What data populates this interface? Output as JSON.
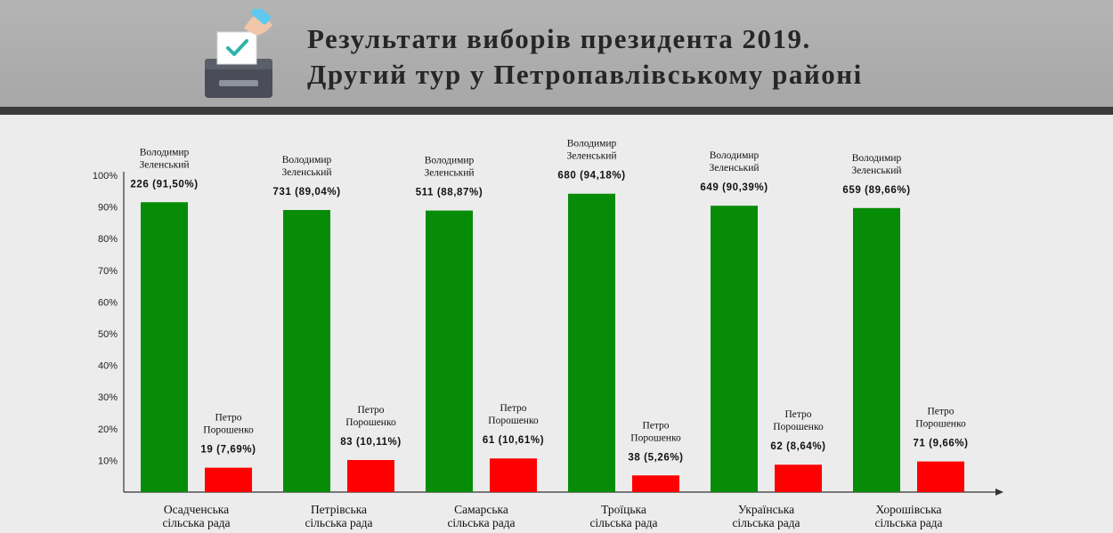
{
  "header": {
    "title_line1": "Результати виборів президента 2019.",
    "title_line2": "Другий тур у Петропавлівському районі",
    "icon": "ballot-box-icon"
  },
  "colors": {
    "zelensky": "#078c07",
    "poroshenko": "#ff0000",
    "header_bg": "#aaaaaa",
    "header_bar": "#3b3b3b",
    "background": "#ececec"
  },
  "chart_data": {
    "type": "bar",
    "title": "Результати виборів президента 2019. Другий тур у Петропавлівському районі",
    "ylim": [
      0,
      100
    ],
    "yticks": [
      10,
      20,
      30,
      40,
      50,
      60,
      70,
      80,
      90,
      100
    ],
    "ytick_labels": [
      "10%",
      "20%",
      "30%",
      "40%",
      "50%",
      "60%",
      "70%",
      "80%",
      "90%",
      "100%"
    ],
    "grid": false,
    "categories": [
      [
        "Осадченська",
        "сільська  рада"
      ],
      [
        "Петрівська",
        "сільська  рада"
      ],
      [
        "Самарська",
        "сільська  рада"
      ],
      [
        "Троїцька",
        "сільська  рада"
      ],
      [
        "Українська",
        "сільська  рада"
      ],
      [
        "Хорошівська",
        "сільська  рада"
      ]
    ],
    "series": [
      {
        "name_lines": [
          "Володимир",
          "Зеленський"
        ],
        "values": [
          91.5,
          89.04,
          88.87,
          94.18,
          90.39,
          89.66
        ],
        "labels": [
          "226  (91,50%)",
          "731  (89,04%)",
          "511  (88,87%)",
          "680  (94,18%)",
          "649  (90,39%)",
          "659  (89,66%)"
        ]
      },
      {
        "name_lines": [
          "Петро",
          "Порошенко"
        ],
        "values": [
          7.69,
          10.11,
          10.61,
          5.26,
          8.64,
          9.66
        ],
        "labels": [
          "19  (7,69%)",
          "83  (10,11%)",
          "61  (10,61%)",
          "38  (5,26%)",
          "62  (8,64%)",
          "71  (9,66%)"
        ]
      }
    ]
  }
}
